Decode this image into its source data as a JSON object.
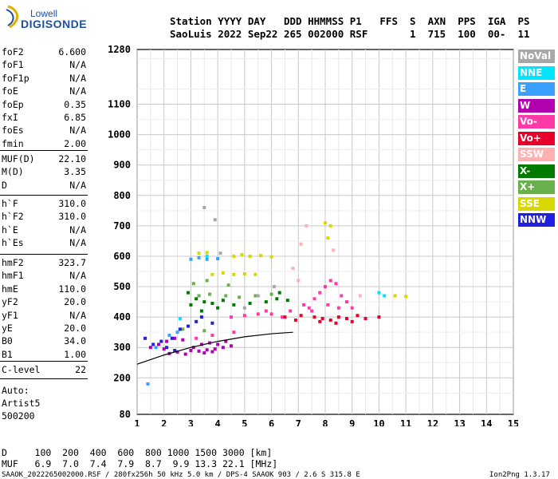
{
  "logo": {
    "top": "Lowell",
    "bottom": "DIGISONDE"
  },
  "header": {
    "line1": "Station YYYY DAY   DDD HHMMSS P1   FFS  S  AXN  PPS  IGA  PS",
    "line2": "SaoLuis 2022 Sep22 265 002000 RSF       1  715  100  00-  11"
  },
  "params_group1": [
    {
      "name": "foF2",
      "value": "6.600"
    },
    {
      "name": "foF1",
      "value": "N/A"
    },
    {
      "name": "foF1p",
      "value": "N/A"
    },
    {
      "name": "foE",
      "value": "N/A"
    },
    {
      "name": "foEp",
      "value": "0.35"
    },
    {
      "name": "fxI",
      "value": "6.85"
    },
    {
      "name": "foEs",
      "value": "N/A"
    },
    {
      "name": "fmin",
      "value": "2.00"
    }
  ],
  "params_group2": [
    {
      "name": "MUF(D)",
      "value": "22.10"
    },
    {
      "name": "M(D)",
      "value": "3.35"
    },
    {
      "name": "D",
      "value": "N/A"
    }
  ],
  "params_group3": [
    {
      "name": "h`F",
      "value": "310.0"
    },
    {
      "name": "h`F2",
      "value": "310.0"
    },
    {
      "name": "h`E",
      "value": "N/A"
    },
    {
      "name": "h`Es",
      "value": "N/A"
    }
  ],
  "params_group4": [
    {
      "name": "hmF2",
      "value": "323.7"
    },
    {
      "name": "hmF1",
      "value": "N/A"
    },
    {
      "name": "hmE",
      "value": "110.0"
    },
    {
      "name": "yF2",
      "value": "20.0"
    },
    {
      "name": "yF1",
      "value": "N/A"
    },
    {
      "name": "yE",
      "value": "20.0"
    },
    {
      "name": "B0",
      "value": "34.0"
    },
    {
      "name": "B1",
      "value": "1.00"
    }
  ],
  "params_group5": [
    {
      "name": "C-level",
      "value": "22"
    }
  ],
  "auto": {
    "label": "Auto:",
    "program": "Artist5",
    "version": "500200"
  },
  "legend": [
    {
      "label": "NoVal",
      "color": "#a8a8a8"
    },
    {
      "label": "NNE",
      "color": "#00e5ff"
    },
    {
      "label": "E",
      "color": "#3aa0ff"
    },
    {
      "label": "W",
      "color": "#b000b0"
    },
    {
      "label": "Vo-",
      "color": "#ff3aa8"
    },
    {
      "label": "Vo+",
      "color": "#e8002a"
    },
    {
      "label": "SSW",
      "color": "#ffb0b0"
    },
    {
      "label": "X-",
      "color": "#007a00"
    },
    {
      "label": "X+",
      "color": "#6ab04c"
    },
    {
      "label": "SSE",
      "color": "#d8d800"
    },
    {
      "label": "NNW",
      "color": "#2020e0"
    }
  ],
  "bottom": {
    "d_row": "D     100  200  400  600  800 1000 1500 3000 [km]",
    "muf_row": "MUF   6.9  7.0  7.4  7.9  8.7  9.9 13.3 22.1 [MHz]"
  },
  "footer": {
    "left": "SAAOK_2022265002000.RSF / 280fx256h 50 kHz 5.0 km / DPS-4 SAAOK 903 / 2.6 S 315.8 E",
    "right": "Ion2Png 1.3.17"
  },
  "chart_data": {
    "type": "scatter",
    "title": "",
    "xlabel": "",
    "ylabel": "",
    "xlim": [
      1,
      15
    ],
    "ylim": [
      80,
      1280
    ],
    "x_ticks": [
      1,
      2,
      3,
      4,
      5,
      6,
      7,
      8,
      9,
      10,
      11,
      12,
      13,
      14,
      15
    ],
    "y_ticks": [
      80,
      200,
      300,
      400,
      500,
      600,
      700,
      800,
      900,
      1000,
      1100,
      1280
    ],
    "grid": true,
    "series": [
      {
        "name": "W",
        "color": "#b000b0",
        "points": [
          [
            2.2,
            280
          ],
          [
            2.5,
            285
          ],
          [
            2.8,
            278
          ],
          [
            3.0,
            290
          ],
          [
            3.3,
            288
          ],
          [
            3.6,
            292
          ],
          [
            3.9,
            295
          ],
          [
            4.2,
            300
          ],
          [
            4.5,
            305
          ],
          [
            2.1,
            320
          ],
          [
            2.4,
            330
          ],
          [
            2.7,
            325
          ],
          [
            3.1,
            300
          ],
          [
            3.4,
            310
          ],
          [
            3.7,
            315
          ],
          [
            4.0,
            310
          ],
          [
            4.3,
            320
          ],
          [
            1.5,
            300
          ],
          [
            1.8,
            310
          ],
          [
            3.5,
            282
          ],
          [
            3.8,
            286
          ],
          [
            2.0,
            295
          ]
        ]
      },
      {
        "name": "Vo-",
        "color": "#ff3aa8",
        "points": [
          [
            7.4,
            430
          ],
          [
            7.6,
            460
          ],
          [
            7.8,
            480
          ],
          [
            8.0,
            500
          ],
          [
            8.2,
            520
          ],
          [
            8.4,
            510
          ],
          [
            8.6,
            470
          ],
          [
            8.8,
            450
          ],
          [
            9.0,
            430
          ],
          [
            7.2,
            440
          ],
          [
            7.5,
            420
          ],
          [
            8.1,
            440
          ],
          [
            8.5,
            430
          ],
          [
            6.4,
            400
          ],
          [
            6.7,
            420
          ],
          [
            5.8,
            420
          ],
          [
            6.0,
            410
          ],
          [
            4.5,
            400
          ],
          [
            5.0,
            405
          ],
          [
            5.5,
            410
          ],
          [
            3.2,
            330
          ],
          [
            3.8,
            340
          ],
          [
            4.6,
            350
          ]
        ]
      },
      {
        "name": "Vo+",
        "color": "#e8002a",
        "points": [
          [
            7.6,
            400
          ],
          [
            7.9,
            395
          ],
          [
            8.2,
            390
          ],
          [
            8.5,
            400
          ],
          [
            8.8,
            395
          ],
          [
            9.2,
            405
          ],
          [
            9.5,
            395
          ],
          [
            10.0,
            400
          ],
          [
            7.8,
            385
          ],
          [
            8.4,
            380
          ],
          [
            9.0,
            385
          ],
          [
            6.9,
            390
          ],
          [
            7.1,
            405
          ],
          [
            6.5,
            400
          ]
        ]
      },
      {
        "name": "X-",
        "color": "#007a00",
        "points": [
          [
            3.0,
            440
          ],
          [
            3.2,
            460
          ],
          [
            3.5,
            450
          ],
          [
            3.8,
            445
          ],
          [
            4.2,
            455
          ],
          [
            4.6,
            440
          ],
          [
            5.2,
            445
          ],
          [
            5.8,
            450
          ],
          [
            6.2,
            460
          ],
          [
            6.6,
            455
          ],
          [
            3.4,
            420
          ],
          [
            4.0,
            430
          ],
          [
            2.9,
            480
          ],
          [
            6.3,
            480
          ]
        ]
      },
      {
        "name": "X+",
        "color": "#6ab04c",
        "points": [
          [
            3.3,
            470
          ],
          [
            3.7,
            475
          ],
          [
            4.3,
            470
          ],
          [
            4.8,
            465
          ],
          [
            5.4,
            470
          ],
          [
            6.0,
            475
          ],
          [
            3.1,
            510
          ],
          [
            3.6,
            520
          ],
          [
            4.4,
            505
          ],
          [
            2.7,
            360
          ],
          [
            3.5,
            355
          ]
        ]
      },
      {
        "name": "SSE",
        "color": "#d8d800",
        "points": [
          [
            4.6,
            600
          ],
          [
            4.9,
            605
          ],
          [
            5.2,
            600
          ],
          [
            5.6,
            602
          ],
          [
            6.0,
            598
          ],
          [
            3.8,
            540
          ],
          [
            4.2,
            545
          ],
          [
            4.6,
            540
          ],
          [
            5.0,
            542
          ],
          [
            5.4,
            540
          ],
          [
            8.0,
            710
          ],
          [
            8.1,
            660
          ],
          [
            8.2,
            700
          ],
          [
            10.6,
            470
          ],
          [
            11.0,
            468
          ],
          [
            3.3,
            610
          ],
          [
            3.6,
            612
          ]
        ]
      },
      {
        "name": "E",
        "color": "#3aa0ff",
        "points": [
          [
            3.0,
            590
          ],
          [
            3.3,
            595
          ],
          [
            3.6,
            590
          ],
          [
            4.0,
            592
          ],
          [
            1.7,
            300
          ],
          [
            2.2,
            340
          ],
          [
            2.5,
            350
          ],
          [
            1.4,
            180
          ]
        ]
      },
      {
        "name": "NNW",
        "color": "#2020e0",
        "points": [
          [
            1.3,
            330
          ],
          [
            1.6,
            310
          ],
          [
            1.9,
            320
          ],
          [
            2.3,
            330
          ],
          [
            2.6,
            360
          ],
          [
            2.9,
            370
          ],
          [
            3.2,
            385
          ],
          [
            3.4,
            400
          ],
          [
            2.1,
            300
          ],
          [
            2.4,
            290
          ],
          [
            3.8,
            380
          ]
        ]
      },
      {
        "name": "NNE",
        "color": "#00e5ff",
        "points": [
          [
            10.0,
            480
          ],
          [
            10.2,
            470
          ],
          [
            2.6,
            395
          ],
          [
            3.6,
            600
          ]
        ]
      },
      {
        "name": "SSW",
        "color": "#ffb0b0",
        "points": [
          [
            7.3,
            700
          ],
          [
            7.1,
            640
          ],
          [
            8.3,
            620
          ],
          [
            6.8,
            560
          ],
          [
            7.0,
            520
          ],
          [
            9.3,
            470
          ]
        ]
      },
      {
        "name": "NoVal",
        "color": "#a8a8a8",
        "points": [
          [
            5.0,
            430
          ],
          [
            5.5,
            470
          ],
          [
            6.1,
            500
          ],
          [
            4.1,
            610
          ],
          [
            3.9,
            720
          ],
          [
            3.5,
            760
          ]
        ]
      }
    ],
    "trace_line": [
      [
        1.0,
        245
      ],
      [
        2.0,
        275
      ],
      [
        3.0,
        300
      ],
      [
        4.0,
        320
      ],
      [
        5.0,
        335
      ],
      [
        6.0,
        345
      ],
      [
        6.8,
        350
      ]
    ]
  }
}
